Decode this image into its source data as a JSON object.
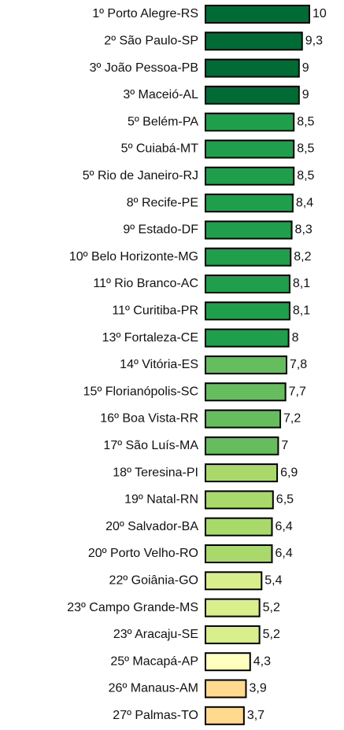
{
  "chart_data": {
    "type": "bar",
    "orientation": "horizontal",
    "categories": [
      "1º Porto Alegre-RS",
      "2º São Paulo-SP",
      "3º João Pessoa-PB",
      "3º Maceió-AL",
      "5º Belém-PA",
      "5º Cuiabá-MT",
      "5º Rio de Janeiro-RJ",
      "8º Recife-PE",
      "9º Estado-DF",
      "10º Belo Horizonte-MG",
      "11º Rio Branco-AC",
      "11º Curitiba-PR",
      "13º Fortaleza-CE",
      "14º Vitória-ES",
      "15º Florianópolis-SC",
      "16º Boa Vista-RR",
      "17º São Luís-MA",
      "18º Teresina-PI",
      "19º Natal-RN",
      "20º Salvador-BA",
      "20º Porto Velho-RO",
      "22º Goiânia-GO",
      "23º Campo Grande-MS",
      "23º Aracaju-SE",
      "25º Macapá-AP",
      "26º Manaus-AM",
      "27º Palmas-TO"
    ],
    "values": [
      10,
      9.3,
      9,
      9,
      8.5,
      8.5,
      8.5,
      8.4,
      8.3,
      8.2,
      8.1,
      8.1,
      8,
      7.8,
      7.7,
      7.2,
      7,
      6.9,
      6.5,
      6.4,
      6.4,
      5.4,
      5.2,
      5.2,
      4.3,
      3.9,
      3.7
    ],
    "value_labels": [
      "10",
      "9,3",
      "9",
      "9",
      "8,5",
      "8,5",
      "8,5",
      "8,4",
      "8,3",
      "8,2",
      "8,1",
      "8,1",
      "8",
      "7,8",
      "7,7",
      "7,2",
      "7",
      "6,9",
      "6,5",
      "6,4",
      "6,4",
      "5,4",
      "5,2",
      "5,2",
      "4,3",
      "3,9",
      "3,7"
    ],
    "colors": [
      "#006b35",
      "#006b35",
      "#006b35",
      "#006b35",
      "#1f9e4c",
      "#1f9e4c",
      "#1f9e4c",
      "#1f9e4c",
      "#1f9e4c",
      "#1f9e4c",
      "#1f9e4c",
      "#1f9e4c",
      "#1f9e4c",
      "#66bd5e",
      "#66bd5e",
      "#66bd5e",
      "#66bd5e",
      "#a9d96b",
      "#a9d96b",
      "#a9d96b",
      "#a9d96b",
      "#d9ef8b",
      "#d9ef8b",
      "#d9ef8b",
      "#ffffbf",
      "#fed98e",
      "#fed98e"
    ],
    "xlim": [
      0,
      10
    ]
  }
}
